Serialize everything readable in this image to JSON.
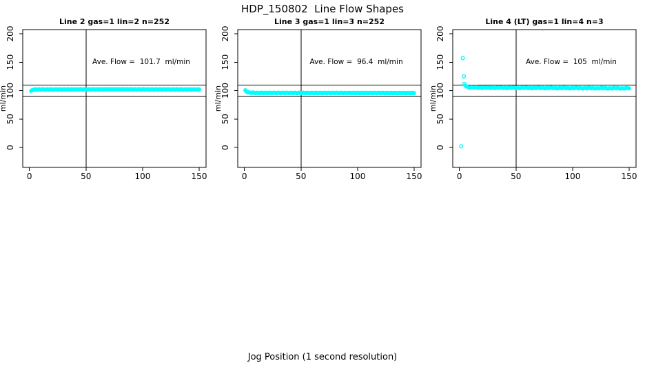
{
  "header": {
    "title": "HDP_150802  Line Flow Shapes"
  },
  "footer": {
    "xlabel": "Jog Position (1 second resolution)"
  },
  "colors": {
    "point": "#00FFFF",
    "axis": "#000000",
    "background": "#FFFFFF"
  },
  "chart_data": {
    "type": "scatter",
    "figure_title": "HDP_150802  Line Flow Shapes",
    "xlabel": "Jog Position (1 second resolution)",
    "ylabel": "ml/min",
    "x_ticks": [
      0,
      50,
      100,
      150
    ],
    "y_ticks": [
      0,
      50,
      100,
      150,
      200
    ],
    "xlim": [
      -6,
      156
    ],
    "ylim": [
      -35,
      207
    ],
    "grid": false,
    "legend": "none",
    "reference_hlines": [
      90,
      110
    ],
    "reference_vline": 50,
    "point_style": "open-circle",
    "plots": [
      {
        "title": "Line 2 gas=1 lin=2 n=252",
        "n": 252,
        "ave_flow": 101.7,
        "annotation": "Ave. Flow =  101.7  ml/min",
        "band_keypoints": [
          [
            1.5,
            99.5
          ],
          [
            2.5,
            101
          ],
          [
            5,
            102
          ],
          [
            80,
            102.3
          ],
          [
            150,
            102
          ]
        ],
        "outliers": [],
        "point_step": 0.55,
        "jitter": 0.5
      },
      {
        "title": "Line 3 gas=1 lin=3 n=252",
        "n": 252,
        "ave_flow": 96.4,
        "annotation": "Ave. Flow =  96.4  ml/min",
        "band_keypoints": [
          [
            0.8,
            100.5
          ],
          [
            2,
            98
          ],
          [
            4,
            96.5
          ],
          [
            10,
            96
          ],
          [
            150,
            95.8
          ]
        ],
        "outliers": [],
        "point_step": 0.55,
        "jitter": 0.5
      },
      {
        "title": "Line 4 (LT) gas=1 lin=4 n=3",
        "n": 3,
        "ave_flow": 105,
        "annotation": "Ave. Flow =  105  ml/min",
        "band_keypoints": [
          [
            4.3,
            112
          ],
          [
            5.5,
            108.5
          ],
          [
            8,
            106
          ],
          [
            20,
            105.2
          ],
          [
            60,
            104.8
          ],
          [
            150,
            104
          ]
        ],
        "outliers": [
          [
            1.5,
            2
          ],
          [
            3,
            157
          ],
          [
            4,
            125
          ]
        ],
        "point_step": 0.8,
        "jitter": 0.85
      }
    ]
  }
}
